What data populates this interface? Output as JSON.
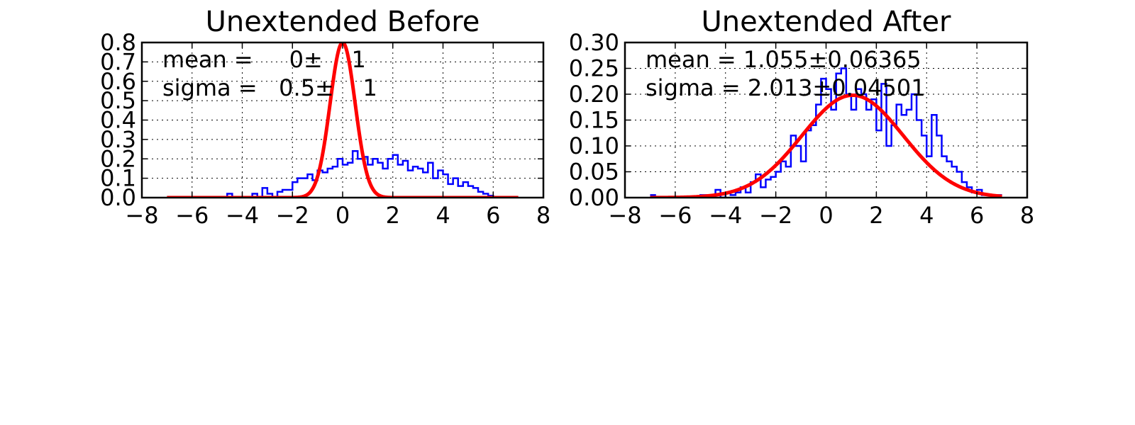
{
  "chart_data": [
    {
      "type": "line",
      "title": "Unextended Before",
      "xlim": [
        -8,
        8
      ],
      "ylim": [
        0,
        0.8
      ],
      "xticks": [
        -8,
        -6,
        -4,
        -2,
        0,
        2,
        4,
        6,
        8
      ],
      "yticks": [
        0.0,
        0.1,
        0.2,
        0.3,
        0.4,
        0.5,
        0.6,
        0.7,
        0.8
      ],
      "ytick_decimals": 1,
      "grid": true,
      "annotations": [
        "mean =     0±    1",
        "sigma =   0.5±    1"
      ],
      "series": [
        {
          "kind": "step-histogram",
          "color": "#0000ff",
          "x": [
            -7.0,
            -6.0,
            -5.0,
            -4.6,
            -4.4,
            -4.2,
            -4.0,
            -3.8,
            -3.6,
            -3.4,
            -3.2,
            -3.0,
            -2.8,
            -2.6,
            -2.4,
            -2.2,
            -2.0,
            -1.8,
            -1.6,
            -1.4,
            -1.2,
            -1.0,
            -0.8,
            -0.6,
            -0.4,
            -0.2,
            0.0,
            0.2,
            0.4,
            0.6,
            0.8,
            1.0,
            1.2,
            1.4,
            1.6,
            1.8,
            2.0,
            2.2,
            2.4,
            2.6,
            2.8,
            3.0,
            3.2,
            3.4,
            3.6,
            3.8,
            4.0,
            4.2,
            4.4,
            4.6,
            4.8,
            5.0,
            5.2,
            5.4,
            5.6,
            5.8,
            6.0,
            6.4,
            7.0
          ],
          "y": [
            0.0,
            0.0,
            0.0,
            0.02,
            0.0,
            0.0,
            0.0,
            0.0,
            0.02,
            0.0,
            0.05,
            0.02,
            0.0,
            0.03,
            0.04,
            0.04,
            0.08,
            0.1,
            0.1,
            0.12,
            0.09,
            0.14,
            0.13,
            0.15,
            0.16,
            0.2,
            0.17,
            0.18,
            0.24,
            0.2,
            0.21,
            0.17,
            0.2,
            0.18,
            0.15,
            0.2,
            0.22,
            0.17,
            0.19,
            0.14,
            0.16,
            0.15,
            0.13,
            0.18,
            0.1,
            0.14,
            0.12,
            0.07,
            0.1,
            0.06,
            0.08,
            0.06,
            0.05,
            0.03,
            0.02,
            0.01,
            0.0,
            0.0,
            0.0
          ]
        },
        {
          "kind": "gaussian-fit",
          "color": "#ff0000",
          "mean": 0,
          "sigma": 0.5,
          "peak": 0.8,
          "x_range": [
            -7,
            7
          ]
        }
      ]
    },
    {
      "type": "line",
      "title": "Unextended After",
      "xlim": [
        -8,
        8
      ],
      "ylim": [
        0,
        0.3
      ],
      "xticks": [
        -8,
        -6,
        -4,
        -2,
        0,
        2,
        4,
        6,
        8
      ],
      "yticks": [
        0.0,
        0.05,
        0.1,
        0.15,
        0.2,
        0.25,
        0.3
      ],
      "ytick_decimals": 2,
      "grid": true,
      "annotations": [
        "mean = 1.055±0.06365",
        "sigma = 2.013±0.04501"
      ],
      "series": [
        {
          "kind": "step-histogram",
          "color": "#0000ff",
          "x": [
            -7.0,
            -6.8,
            -6.6,
            -5.0,
            -4.8,
            -4.6,
            -4.4,
            -4.2,
            -4.0,
            -3.8,
            -3.6,
            -3.4,
            -3.2,
            -3.0,
            -2.8,
            -2.6,
            -2.4,
            -2.2,
            -2.0,
            -1.8,
            -1.6,
            -1.4,
            -1.2,
            -1.0,
            -0.8,
            -0.6,
            -0.4,
            -0.2,
            0.0,
            0.2,
            0.4,
            0.6,
            0.8,
            1.0,
            1.2,
            1.4,
            1.6,
            1.8,
            2.0,
            2.2,
            2.4,
            2.6,
            2.8,
            3.0,
            3.2,
            3.4,
            3.6,
            3.8,
            4.0,
            4.2,
            4.4,
            4.6,
            4.8,
            5.0,
            5.2,
            5.4,
            5.6,
            5.8,
            6.0,
            6.2,
            6.6,
            7.0
          ],
          "y": [
            0.005,
            0.0,
            0.0,
            0.005,
            0.005,
            0.0,
            0.015,
            0.0,
            0.01,
            0.005,
            0.01,
            0.02,
            0.01,
            0.03,
            0.045,
            0.02,
            0.035,
            0.04,
            0.05,
            0.07,
            0.06,
            0.12,
            0.1,
            0.07,
            0.13,
            0.14,
            0.18,
            0.23,
            0.21,
            0.17,
            0.24,
            0.25,
            0.2,
            0.17,
            0.21,
            0.2,
            0.17,
            0.19,
            0.13,
            0.22,
            0.1,
            0.14,
            0.18,
            0.16,
            0.17,
            0.2,
            0.15,
            0.12,
            0.08,
            0.16,
            0.12,
            0.08,
            0.07,
            0.06,
            0.05,
            0.03,
            0.02,
            0.01,
            0.015,
            0.005,
            0.005,
            0.0
          ]
        },
        {
          "kind": "gaussian-fit",
          "color": "#ff0000",
          "mean": 1.055,
          "sigma": 2.013,
          "peak": 0.198,
          "x_range": [
            -7,
            7
          ]
        }
      ]
    }
  ]
}
